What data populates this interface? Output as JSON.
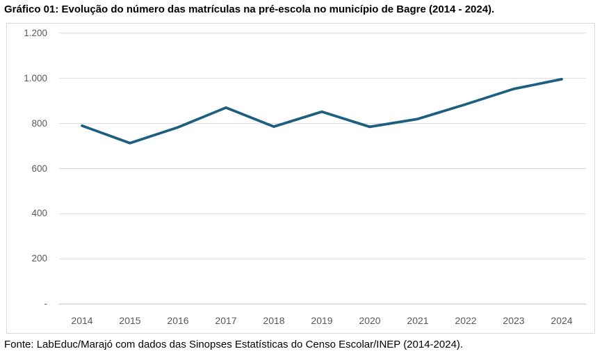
{
  "title": "Gráfico 01: Evolução do número das matrículas na pré-escola no município de Bagre (2014 - 2024).",
  "source_note": "Fonte: LabEduc/Marajó com dados das Sinopses Estatísticas do Censo Escolar/INEP (2014-2024).",
  "chart_data": {
    "type": "line",
    "title": "Gráfico 01: Evolução do número das matrículas na pré-escola no município de Bagre (2014 - 2024).",
    "categories": [
      "2014",
      "2015",
      "2016",
      "2017",
      "2018",
      "2019",
      "2020",
      "2021",
      "2022",
      "2023",
      "2024"
    ],
    "values": [
      790,
      713,
      783,
      870,
      786,
      852,
      785,
      820,
      885,
      953,
      996
    ],
    "xlabel": "",
    "ylabel": "",
    "ylim": [
      0,
      1200
    ],
    "y_tick_interval": 200,
    "y_tick_labels": [
      "-",
      "200",
      "400",
      "600",
      "800",
      "1.000",
      "1.200"
    ],
    "grid": true,
    "legend": "none",
    "colors": {
      "line": "#1E5F80",
      "gridline": "#D9D9D9",
      "axis_line": "#BFBFBF",
      "frame_border": "#D9D9D9",
      "tick_text": "#595959",
      "title_text": "#000000"
    }
  }
}
